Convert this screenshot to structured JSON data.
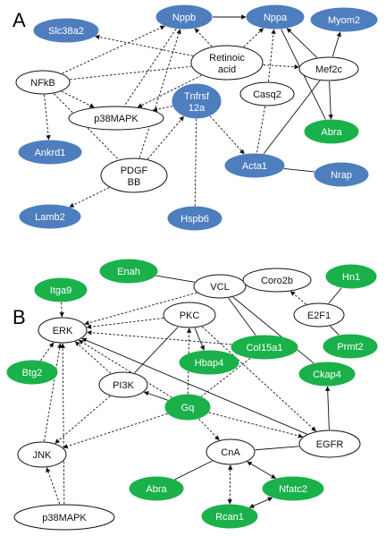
{
  "colors": {
    "blue": "#4f7ebf",
    "green": "#1ab14b",
    "white": "#ffffff",
    "edge": "#111111"
  },
  "panels": [
    {
      "label": "A",
      "nodes": [
        {
          "id": "slc38a2",
          "label": "Slc38a2",
          "color": "blue"
        },
        {
          "id": "nppb",
          "label": "Nppb",
          "color": "blue"
        },
        {
          "id": "nppa",
          "label": "Nppa",
          "color": "blue"
        },
        {
          "id": "myom2",
          "label": "Myom2",
          "color": "blue"
        },
        {
          "id": "retinoic",
          "label": "Retinoic acid",
          "color": "white"
        },
        {
          "id": "nfkb",
          "label": "NFkB",
          "color": "white"
        },
        {
          "id": "mef2c",
          "label": "Mef2c",
          "color": "white"
        },
        {
          "id": "tnfrsf12a",
          "label": "Tnfrsf 12a",
          "color": "blue"
        },
        {
          "id": "casq2",
          "label": "Casq2",
          "color": "white"
        },
        {
          "id": "p38a",
          "label": "p38MAPK",
          "color": "white"
        },
        {
          "id": "abra_a",
          "label": "Abra",
          "color": "green"
        },
        {
          "id": "ankrd1",
          "label": "Ankrd1",
          "color": "blue"
        },
        {
          "id": "pdgfbb",
          "label": "PDGF BB",
          "color": "white"
        },
        {
          "id": "acta1",
          "label": "Acta1",
          "color": "blue"
        },
        {
          "id": "nrap",
          "label": "Nrap",
          "color": "blue"
        },
        {
          "id": "lamb2",
          "label": "Lamb2",
          "color": "blue"
        },
        {
          "id": "hspb6",
          "label": "Hspb6",
          "color": "blue"
        }
      ]
    },
    {
      "label": "B",
      "nodes": [
        {
          "id": "itga9",
          "label": "Itga9",
          "color": "green"
        },
        {
          "id": "enah",
          "label": "Enah",
          "color": "green"
        },
        {
          "id": "vcl",
          "label": "VCL",
          "color": "white"
        },
        {
          "id": "coro2b",
          "label": "Coro2b",
          "color": "white"
        },
        {
          "id": "hn1",
          "label": "Hn1",
          "color": "green"
        },
        {
          "id": "erk",
          "label": "ERK",
          "color": "white"
        },
        {
          "id": "pkc",
          "label": "PKC",
          "color": "white"
        },
        {
          "id": "e2f1",
          "label": "E2F1",
          "color": "white"
        },
        {
          "id": "col15a1",
          "label": "Col15a1",
          "color": "green"
        },
        {
          "id": "prmt2",
          "label": "Prmt2",
          "color": "green"
        },
        {
          "id": "btg2",
          "label": "Btg2",
          "color": "green"
        },
        {
          "id": "hbap4",
          "label": "Hbap4",
          "color": "green"
        },
        {
          "id": "ckap4",
          "label": "Ckap4",
          "color": "green"
        },
        {
          "id": "pi3k",
          "label": "PI3K",
          "color": "white"
        },
        {
          "id": "gq",
          "label": "Gq",
          "color": "green"
        },
        {
          "id": "egfr",
          "label": "EGFR",
          "color": "white"
        },
        {
          "id": "jnk",
          "label": "JNK",
          "color": "white"
        },
        {
          "id": "cna",
          "label": "CnA",
          "color": "white"
        },
        {
          "id": "abra_b",
          "label": "Abra",
          "color": "green"
        },
        {
          "id": "nfatc2",
          "label": "Nfatc2",
          "color": "green"
        },
        {
          "id": "rcan1",
          "label": "Rcan1",
          "color": "green"
        },
        {
          "id": "p38b",
          "label": "p38MAPK",
          "color": "white"
        }
      ]
    }
  ]
}
